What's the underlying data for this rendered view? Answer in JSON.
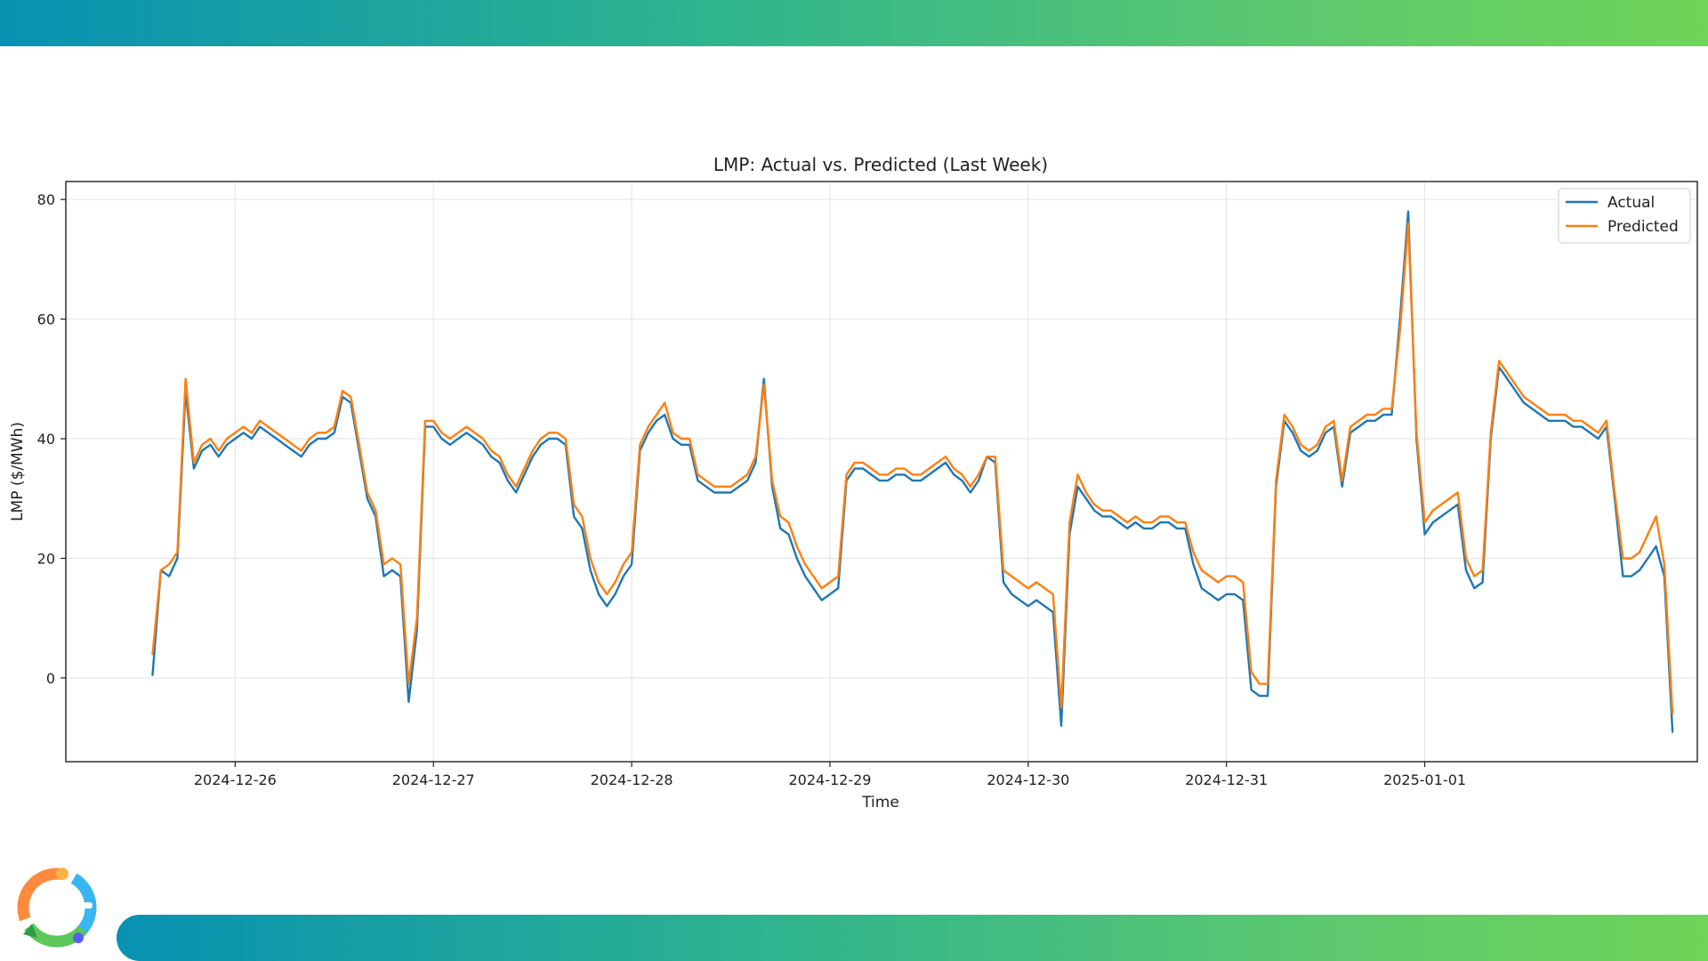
{
  "colors": {
    "actual": "#1f77b4",
    "predicted": "#ff7f0e",
    "grid": "#e3e3e3",
    "accent_start": "#0891b2",
    "accent_end": "#6fd458"
  },
  "logo": {
    "icon": "circular-rings-logo-icon"
  },
  "chart_data": {
    "type": "line",
    "title": "LMP: Actual vs. Predicted (Last Week)",
    "xlabel": "Time",
    "ylabel": "LMP ($/MWh)",
    "x_ticks": [
      "2024-12-26",
      "2024-12-27",
      "2024-12-28",
      "2024-12-29",
      "2024-12-30",
      "2024-12-31",
      "2025-01-01"
    ],
    "y_ticks": [
      "0",
      "20",
      "40",
      "60",
      "80"
    ],
    "xlim_hours": [
      -20.5,
      177
    ],
    "ylim": [
      -14,
      83
    ],
    "grid": true,
    "legend_position": "top-right",
    "x_start": "2024-12-25 14:00",
    "x_step_hours": 1,
    "series": [
      {
        "name": "Actual",
        "values": [
          0.5,
          18,
          17,
          20,
          48,
          35,
          38,
          39,
          37,
          39,
          40,
          41,
          40,
          42,
          41,
          40,
          39,
          38,
          37,
          39,
          40,
          40,
          41,
          47,
          46,
          38,
          30,
          27,
          17,
          18,
          17,
          -4,
          8,
          42,
          42,
          40,
          39,
          40,
          41,
          40,
          39,
          37,
          36,
          33,
          31,
          34,
          37,
          39,
          40,
          40,
          39,
          27,
          25,
          18,
          14,
          12,
          14,
          17,
          19,
          38,
          41,
          43,
          44,
          40,
          39,
          39,
          33,
          32,
          31,
          31,
          31,
          32,
          33,
          36,
          50,
          32,
          25,
          24,
          20,
          17,
          15,
          13,
          14,
          15,
          33,
          35,
          35,
          34,
          33,
          33,
          34,
          34,
          33,
          33,
          34,
          35,
          36,
          34,
          33,
          31,
          33,
          37,
          36,
          16,
          14,
          13,
          12,
          13,
          12,
          11,
          -8,
          24,
          32,
          30,
          28,
          27,
          27,
          26,
          25,
          26,
          25,
          25,
          26,
          26,
          25,
          25,
          19,
          15,
          14,
          13,
          14,
          14,
          13,
          -2,
          -3,
          -3,
          32,
          43,
          41,
          38,
          37,
          38,
          41,
          42,
          32,
          41,
          42,
          43,
          43,
          44,
          44,
          60,
          78,
          40,
          24,
          26,
          27,
          28,
          29,
          18,
          15,
          16,
          40,
          52,
          50,
          48,
          46,
          45,
          44,
          43,
          43,
          43,
          42,
          42,
          41,
          40,
          42,
          30,
          17,
          17,
          18,
          20,
          22,
          17,
          -9
        ],
        "color": "#1f77b4"
      },
      {
        "name": "Predicted",
        "values": [
          4,
          18,
          19,
          21,
          50,
          36,
          39,
          40,
          38,
          40,
          41,
          42,
          41,
          43,
          42,
          41,
          40,
          39,
          38,
          40,
          41,
          41,
          42,
          48,
          47,
          39,
          31,
          28,
          19,
          20,
          19,
          -1,
          10,
          43,
          43,
          41,
          40,
          41,
          42,
          41,
          40,
          38,
          37,
          34,
          32,
          35,
          38,
          40,
          41,
          41,
          40,
          29,
          27,
          20,
          16,
          14,
          16,
          19,
          21,
          39,
          42,
          44,
          46,
          41,
          40,
          40,
          34,
          33,
          32,
          32,
          32,
          33,
          34,
          37,
          49,
          33,
          27,
          26,
          22,
          19,
          17,
          15,
          16,
          17,
          34,
          36,
          36,
          35,
          34,
          34,
          35,
          35,
          34,
          34,
          35,
          36,
          37,
          35,
          34,
          32,
          34,
          37,
          37,
          18,
          17,
          16,
          15,
          16,
          15,
          14,
          -5,
          26,
          34,
          31,
          29,
          28,
          28,
          27,
          26,
          27,
          26,
          26,
          27,
          27,
          26,
          26,
          21,
          18,
          17,
          16,
          17,
          17,
          16,
          1,
          -1,
          -1,
          33,
          44,
          42,
          39,
          38,
          39,
          42,
          43,
          33,
          42,
          43,
          44,
          44,
          45,
          45,
          58,
          76,
          41,
          26,
          28,
          29,
          30,
          31,
          20,
          17,
          18,
          41,
          53,
          51,
          49,
          47,
          46,
          45,
          44,
          44,
          44,
          43,
          43,
          42,
          41,
          43,
          31,
          20,
          20,
          21,
          24,
          27,
          19,
          -6
        ],
        "color": "#ff7f0e"
      }
    ]
  }
}
